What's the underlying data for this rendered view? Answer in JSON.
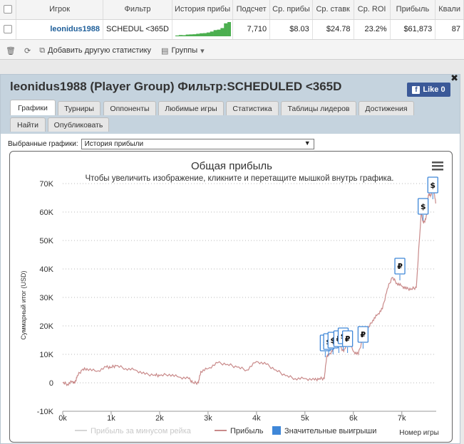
{
  "stats_table": {
    "columns": [
      "",
      "Игрок",
      "Фильтр",
      "История прибы",
      "Подсчет",
      "Ср. прибы",
      "Ср. ставк",
      "Ср. ROI",
      "Прибыль",
      "Квали"
    ],
    "row": {
      "player": "leonidus1988",
      "filter": "SCHEDUL <365D",
      "count": "7,710",
      "avg_profit": "$8.03",
      "avg_stake": "$24.78",
      "avg_roi": "23.2%",
      "profit": "$61,873",
      "quali": "87"
    },
    "sparkline_values": [
      0.5,
      0.8,
      0.7,
      1.1,
      1.2,
      1.3,
      1.6,
      1.9,
      2.0,
      2.4,
      3.0,
      3.9,
      4.2,
      5.2,
      8.2,
      9.0
    ]
  },
  "toolbar": {
    "add_stats": "Добавить другую статистику",
    "groups": "Группы"
  },
  "modal": {
    "title": "leonidus1988 (Player Group) Фильтр:SCHEDULED <365D",
    "fb_like": "Like 0",
    "tabs": [
      "Графики",
      "Турниры",
      "Оппоненты",
      "Любимые игры",
      "Статистика",
      "Таблицы лидеров",
      "Достижения",
      "Найти",
      "Опубликовать"
    ],
    "charts_label": "Выбранные графики:",
    "charts_selected": "История прибыли"
  },
  "chart_data": {
    "type": "line",
    "title": "Общая прибыль",
    "subtitle": "Чтобы увеличить изображение, кликните и перетащите мышкой внутрь графика.",
    "ylabel": "Суммарный итог (USD)",
    "xlabel": "Номер игры",
    "xlim": [
      0,
      7710
    ],
    "ylim": [
      -10000,
      70000
    ],
    "x_ticks": [
      "0k",
      "1k",
      "2k",
      "3k",
      "4k",
      "5k",
      "6k",
      "7k"
    ],
    "y_ticks": [
      "-10K",
      "0",
      "10K",
      "20K",
      "30K",
      "40K",
      "50K",
      "60K",
      "70K"
    ],
    "legend": [
      "Прибыль за минусом рейка",
      "Прибыль",
      "Значительные выигрыши"
    ],
    "series": [
      {
        "name": "Прибыль",
        "x": [
          0,
          100,
          200,
          250,
          300,
          400,
          500,
          700,
          900,
          1000,
          1100,
          1300,
          1500,
          1700,
          1900,
          2000,
          2200,
          2400,
          2600,
          2700,
          2800,
          2850,
          3000,
          3200,
          3400,
          3600,
          3800,
          4000,
          4200,
          4400,
          4600,
          4800,
          5000,
          5200,
          5300,
          5400,
          5450,
          5500,
          5600,
          5700,
          5800,
          5900,
          6000,
          6100,
          6200,
          6300,
          6400,
          6500,
          6600,
          6700,
          6800,
          6900,
          7000,
          7100,
          7200,
          7300,
          7400,
          7420,
          7450,
          7500,
          7550,
          7600,
          7650,
          7700
        ],
        "y": [
          0,
          -500,
          500,
          -200,
          2500,
          4500,
          5000,
          4000,
          5500,
          5500,
          6000,
          5000,
          4500,
          3000,
          2800,
          2500,
          3000,
          2000,
          1500,
          0,
          0,
          4000,
          5000,
          7000,
          6500,
          5500,
          4500,
          7500,
          6500,
          4500,
          2500,
          1500,
          1500,
          1000,
          1500,
          1500,
          9500,
          10000,
          12000,
          13500,
          11000,
          15000,
          11000,
          10000,
          16000,
          19000,
          22000,
          24000,
          26000,
          33000,
          37000,
          35000,
          34000,
          33000,
          33000,
          33500,
          60000,
          58000,
          56000,
          58000,
          66000,
          66000,
          69000,
          63000
        ]
      }
    ],
    "notable_wins": [
      {
        "x": 5420,
        "y": 14000,
        "currency": "$"
      },
      {
        "x": 5490,
        "y": 14500,
        "currency": "$"
      },
      {
        "x": 5580,
        "y": 15000,
        "currency": "$"
      },
      {
        "x": 5700,
        "y": 15500,
        "currency": "₽"
      },
      {
        "x": 5790,
        "y": 16500,
        "currency": "$"
      },
      {
        "x": 5880,
        "y": 15500,
        "currency": "₽"
      },
      {
        "x": 6200,
        "y": 17000,
        "currency": "₽"
      },
      {
        "x": 6960,
        "y": 41000,
        "currency": "₽"
      },
      {
        "x": 7440,
        "y": 62000,
        "currency": "$"
      },
      {
        "x": 7640,
        "y": 69500,
        "currency": "$"
      }
    ],
    "colors": {
      "profit": "#c98a8a",
      "rake": "#d6d6d6",
      "notable": "#3f87d8"
    }
  }
}
